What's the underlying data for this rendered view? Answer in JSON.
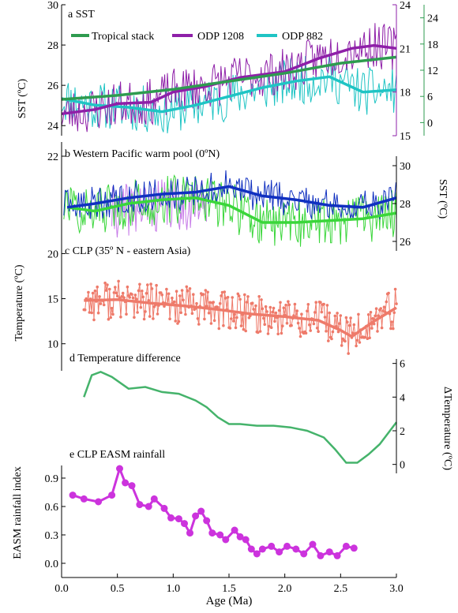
{
  "colors": {
    "tropical": "#2e9b4f",
    "odp1208": "#8e1fa8",
    "odp882": "#1fc4c4",
    "wpwp_blue": "#1030c0",
    "wpwp_green": "#3ad63a",
    "wpwp_violet": "#c77be8",
    "clp_temp": "#ee7a6a",
    "temp_diff": "#45b36b",
    "rainfall": "#cc33dd"
  },
  "x_axis": {
    "label": "Age (Ma)",
    "range": [
      0,
      3.0
    ],
    "ticks": [
      "0.0",
      "0.5",
      "1.0",
      "1.5",
      "2.0",
      "2.5",
      "3.0"
    ]
  },
  "chart_data": [
    {
      "type": "line",
      "panel_label": "a  SST",
      "ylabel": "SST (ºC)",
      "ylim": [
        23.5,
        30
      ],
      "yticks": [
        "24",
        "26",
        "28",
        "30"
      ],
      "right_axis_1": {
        "range": [
          15,
          24
        ],
        "ticks": [
          "15",
          "18",
          "21",
          "24"
        ]
      },
      "right_axis_2": {
        "range": [
          -3,
          27
        ],
        "ticks": [
          "0",
          "6",
          "12",
          "18",
          "24"
        ]
      },
      "legend": [
        "Tropical  stack",
        "ODP 1208",
        "ODP 882"
      ],
      "series": [
        {
          "name": "Tropical  stack",
          "axis": "left",
          "x": [
            0.0,
            0.5,
            1.0,
            1.5,
            2.0,
            2.5,
            3.0
          ],
          "values": [
            25.3,
            25.5,
            25.8,
            26.2,
            26.6,
            27.1,
            27.4
          ]
        },
        {
          "name": "ODP 1208",
          "axis": "right1",
          "x": [
            0.0,
            0.3,
            0.5,
            0.8,
            1.0,
            1.3,
            1.6,
            2.0,
            2.3,
            2.6,
            2.8,
            3.0
          ],
          "values": [
            16.5,
            16.8,
            17.2,
            17.3,
            18.0,
            18.4,
            19.0,
            19.4,
            20.3,
            21.0,
            21.2,
            21.0
          ]
        },
        {
          "name": "ODP 882",
          "axis": "right2",
          "x": [
            0.0,
            0.3,
            0.6,
            0.9,
            1.2,
            1.5,
            1.8,
            2.1,
            2.4,
            2.7,
            3.0
          ],
          "values": [
            5.5,
            4.0,
            3.5,
            2.5,
            4.0,
            6.0,
            8.0,
            9.5,
            10.5,
            7.0,
            7.5
          ]
        }
      ]
    },
    {
      "type": "line",
      "panel_label": "b Western Pacific warm pool (0ºN)",
      "ylabel": "SST (ºC)",
      "left_axis": {
        "range": [
          18,
          22
        ],
        "ticks": [
          "22"
        ]
      },
      "right_axis": {
        "range": [
          25.5,
          30.5
        ],
        "ticks": [
          "26",
          "28",
          "30"
        ]
      },
      "series": [
        {
          "name": "",
          "color": "wpwp_blue",
          "x": [
            0.05,
            0.3,
            0.6,
            0.9,
            1.2,
            1.5,
            1.8,
            2.1,
            2.4,
            2.7,
            3.0
          ],
          "values": [
            27.8,
            28.0,
            28.3,
            28.5,
            28.6,
            28.9,
            28.4,
            28.2,
            27.9,
            27.8,
            28.3
          ]
        },
        {
          "name": "",
          "color": "wpwp_green",
          "x": [
            0.05,
            0.3,
            0.6,
            0.9,
            1.2,
            1.5,
            1.8,
            2.1,
            2.4,
            2.7,
            3.0
          ],
          "values": [
            27.8,
            27.6,
            28.0,
            28.2,
            28.3,
            27.9,
            27.0,
            27.0,
            27.1,
            27.2,
            27.5
          ]
        }
      ]
    },
    {
      "type": "line",
      "panel_label": "c CLP (35º N - eastern Asia)",
      "ylabel": "Temperature (ºC)",
      "ylim": [
        7,
        21
      ],
      "yticks": [
        "10",
        "15",
        "20"
      ],
      "series": [
        {
          "name": "",
          "x": [
            0.2,
            0.5,
            0.8,
            1.1,
            1.4,
            1.7,
            2.0,
            2.3,
            2.5,
            2.6,
            2.8,
            3.0
          ],
          "values": [
            14.8,
            14.9,
            14.5,
            14.2,
            13.8,
            13.3,
            13.0,
            12.6,
            11.5,
            10.8,
            12.5,
            14.0
          ]
        }
      ]
    },
    {
      "type": "line",
      "panel_label": "d Temperature difference",
      "ylabel": "ΔTemperature (ºC)",
      "ylim": [
        -1,
        6.5
      ],
      "yticks": [
        "0",
        "2",
        "4",
        "6"
      ],
      "x": [
        0.2,
        0.27,
        0.35,
        0.45,
        0.6,
        0.75,
        0.9,
        1.05,
        1.2,
        1.3,
        1.4,
        1.5,
        1.6,
        1.75,
        1.9,
        2.05,
        2.2,
        2.35,
        2.45,
        2.55,
        2.65,
        2.75,
        2.85,
        3.0
      ],
      "values": [
        4.0,
        5.3,
        5.5,
        5.2,
        4.5,
        4.6,
        4.3,
        4.2,
        3.8,
        3.4,
        2.8,
        2.4,
        2.4,
        2.3,
        2.3,
        2.2,
        2.0,
        1.6,
        0.9,
        0.1,
        0.1,
        0.6,
        1.2,
        2.5
      ]
    },
    {
      "type": "line",
      "panel_label": "e CLP EASM rainfall",
      "ylabel": "EASM rainfall index",
      "ylim": [
        -0.05,
        1.05
      ],
      "yticks": [
        "0.0",
        "0.3",
        "0.6",
        "0.9"
      ],
      "x": [
        0.1,
        0.2,
        0.33,
        0.45,
        0.52,
        0.57,
        0.63,
        0.7,
        0.78,
        0.83,
        0.92,
        0.98,
        1.05,
        1.1,
        1.15,
        1.2,
        1.25,
        1.3,
        1.35,
        1.42,
        1.47,
        1.55,
        1.6,
        1.65,
        1.7,
        1.75,
        1.8,
        1.88,
        1.95,
        2.02,
        2.1,
        2.17,
        2.25,
        2.32,
        2.4,
        2.47,
        2.55,
        2.62
      ],
      "values": [
        0.72,
        0.68,
        0.65,
        0.72,
        1.0,
        0.85,
        0.82,
        0.62,
        0.6,
        0.68,
        0.58,
        0.48,
        0.47,
        0.42,
        0.32,
        0.5,
        0.55,
        0.45,
        0.32,
        0.3,
        0.25,
        0.35,
        0.28,
        0.25,
        0.15,
        0.1,
        0.15,
        0.18,
        0.12,
        0.18,
        0.15,
        0.1,
        0.2,
        0.08,
        0.12,
        0.08,
        0.18,
        0.16
      ]
    }
  ]
}
